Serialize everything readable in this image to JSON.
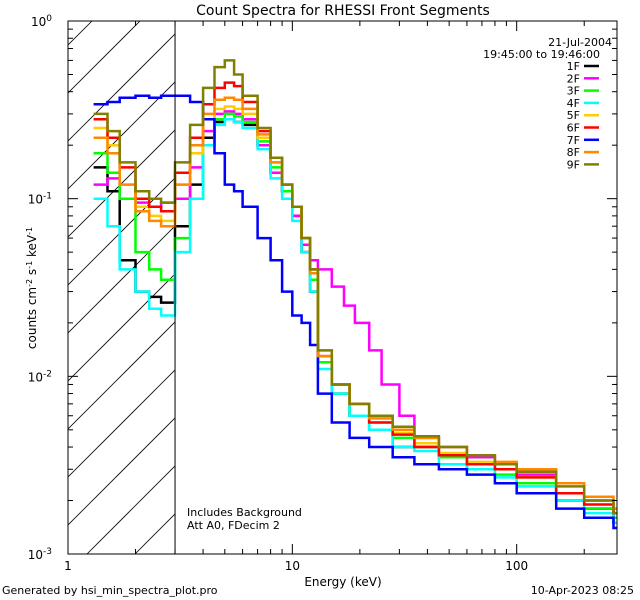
{
  "chart_data": {
    "type": "line",
    "title": "Count Spectra for RHESSI Front Segments",
    "xlabel": "Energy (keV)",
    "ylabel_parts": [
      "counts cm",
      "-2",
      " s",
      "-1",
      " keV",
      "-1"
    ],
    "xscale": "log",
    "yscale": "log",
    "xlim": [
      1,
      280
    ],
    "ylim": [
      0.001,
      1.0
    ],
    "x_ticks": [
      {
        "value": 1,
        "label": "1"
      },
      {
        "value": 10,
        "label": "10"
      },
      {
        "value": 100,
        "label": "100"
      }
    ],
    "y_ticks": [
      {
        "value": 1.0,
        "base": "10",
        "exp": "0"
      },
      {
        "value": 0.1,
        "base": "10",
        "exp": "-1"
      },
      {
        "value": 0.01,
        "base": "10",
        "exp": "-2"
      },
      {
        "value": 0.001,
        "base": "10",
        "exp": "-3"
      }
    ],
    "attenuator_boundary_keV": 3.0,
    "annotation_top_right": [
      "21-Jul-2004",
      "19:45:00 to 19:46:00"
    ],
    "annotation_bottom_left": [
      "Includes Background",
      "Att A0, FDecim 2"
    ],
    "series": [
      {
        "name": "1F",
        "color": "#000000",
        "points": [
          [
            1.3,
            0.15
          ],
          [
            1.5,
            0.11
          ],
          [
            1.7,
            0.045
          ],
          [
            2.0,
            0.03
          ],
          [
            2.3,
            0.028
          ],
          [
            2.6,
            0.026
          ],
          [
            3.0,
            0.07
          ],
          [
            3.5,
            0.12
          ],
          [
            4.0,
            0.22
          ],
          [
            4.5,
            0.27
          ],
          [
            5.0,
            0.28
          ],
          [
            5.5,
            0.27
          ],
          [
            6.0,
            0.26
          ],
          [
            7.0,
            0.2
          ],
          [
            8.0,
            0.14
          ],
          [
            9.0,
            0.11
          ],
          [
            10,
            0.08
          ],
          [
            11,
            0.05
          ],
          [
            12,
            0.03
          ],
          [
            13,
            0.012
          ],
          [
            15,
            0.008
          ],
          [
            18,
            0.006
          ],
          [
            22,
            0.005
          ],
          [
            28,
            0.004
          ],
          [
            35,
            0.004
          ],
          [
            45,
            0.0035
          ],
          [
            60,
            0.003
          ],
          [
            80,
            0.003
          ],
          [
            100,
            0.0025
          ],
          [
            150,
            0.002
          ],
          [
            200,
            0.0018
          ],
          [
            270,
            0.0015
          ]
        ]
      },
      {
        "name": "2F",
        "color": "#ff00ff",
        "points": [
          [
            1.3,
            0.12
          ],
          [
            1.5,
            0.13
          ],
          [
            1.7,
            0.1
          ],
          [
            2.0,
            0.095
          ],
          [
            2.3,
            0.09
          ],
          [
            2.6,
            0.095
          ],
          [
            3.0,
            0.1
          ],
          [
            3.5,
            0.15
          ],
          [
            4.0,
            0.24
          ],
          [
            4.5,
            0.3
          ],
          [
            5.0,
            0.31
          ],
          [
            5.5,
            0.3
          ],
          [
            6.0,
            0.28
          ],
          [
            7.0,
            0.2
          ],
          [
            8.0,
            0.14
          ],
          [
            9.0,
            0.11
          ],
          [
            10,
            0.08
          ],
          [
            11,
            0.055
          ],
          [
            12,
            0.045
          ],
          [
            13,
            0.04
          ],
          [
            15,
            0.032
          ],
          [
            17,
            0.025
          ],
          [
            19,
            0.02
          ],
          [
            22,
            0.014
          ],
          [
            25,
            0.009
          ],
          [
            30,
            0.006
          ],
          [
            35,
            0.0045
          ],
          [
            45,
            0.004
          ],
          [
            60,
            0.0035
          ],
          [
            80,
            0.003
          ],
          [
            100,
            0.0028
          ],
          [
            150,
            0.0022
          ],
          [
            200,
            0.002
          ],
          [
            270,
            0.0018
          ]
        ]
      },
      {
        "name": "3F",
        "color": "#00ff00",
        "points": [
          [
            1.3,
            0.18
          ],
          [
            1.5,
            0.14
          ],
          [
            1.7,
            0.1
          ],
          [
            2.0,
            0.05
          ],
          [
            2.3,
            0.04
          ],
          [
            2.6,
            0.035
          ],
          [
            3.0,
            0.06
          ],
          [
            3.5,
            0.1
          ],
          [
            4.0,
            0.2
          ],
          [
            4.5,
            0.28
          ],
          [
            5.0,
            0.3
          ],
          [
            5.5,
            0.29
          ],
          [
            6.0,
            0.27
          ],
          [
            7.0,
            0.21
          ],
          [
            8.0,
            0.15
          ],
          [
            9.0,
            0.11
          ],
          [
            10,
            0.09
          ],
          [
            11,
            0.06
          ],
          [
            12,
            0.035
          ],
          [
            13,
            0.012
          ],
          [
            15,
            0.008
          ],
          [
            18,
            0.006
          ],
          [
            22,
            0.005
          ],
          [
            28,
            0.0045
          ],
          [
            35,
            0.004
          ],
          [
            45,
            0.0035
          ],
          [
            60,
            0.003
          ],
          [
            80,
            0.0028
          ],
          [
            100,
            0.0025
          ],
          [
            150,
            0.002
          ],
          [
            200,
            0.0018
          ],
          [
            270,
            0.0016
          ]
        ]
      },
      {
        "name": "4F",
        "color": "#00ffff",
        "points": [
          [
            1.3,
            0.1
          ],
          [
            1.5,
            0.07
          ],
          [
            1.7,
            0.04
          ],
          [
            2.0,
            0.03
          ],
          [
            2.3,
            0.024
          ],
          [
            2.6,
            0.022
          ],
          [
            3.0,
            0.05
          ],
          [
            3.5,
            0.1
          ],
          [
            4.0,
            0.2
          ],
          [
            4.5,
            0.26
          ],
          [
            5.0,
            0.28
          ],
          [
            5.5,
            0.27
          ],
          [
            6.0,
            0.25
          ],
          [
            7.0,
            0.19
          ],
          [
            8.0,
            0.13
          ],
          [
            9.0,
            0.1
          ],
          [
            10,
            0.075
          ],
          [
            11,
            0.05
          ],
          [
            12,
            0.03
          ],
          [
            13,
            0.011
          ],
          [
            15,
            0.008
          ],
          [
            18,
            0.006
          ],
          [
            22,
            0.005
          ],
          [
            28,
            0.004
          ],
          [
            35,
            0.0038
          ],
          [
            45,
            0.0032
          ],
          [
            60,
            0.003
          ],
          [
            80,
            0.0027
          ],
          [
            100,
            0.0024
          ],
          [
            150,
            0.002
          ],
          [
            200,
            0.0017
          ],
          [
            270,
            0.0015
          ]
        ]
      },
      {
        "name": "5F",
        "color": "#ffcc00",
        "points": [
          [
            1.3,
            0.25
          ],
          [
            1.5,
            0.2
          ],
          [
            1.7,
            0.12
          ],
          [
            2.0,
            0.09
          ],
          [
            2.3,
            0.08
          ],
          [
            2.6,
            0.075
          ],
          [
            3.0,
            0.12
          ],
          [
            3.5,
            0.18
          ],
          [
            4.0,
            0.28
          ],
          [
            4.5,
            0.32
          ],
          [
            5.0,
            0.33
          ],
          [
            5.5,
            0.32
          ],
          [
            6.0,
            0.3
          ],
          [
            7.0,
            0.22
          ],
          [
            8.0,
            0.16
          ],
          [
            9.0,
            0.12
          ],
          [
            10,
            0.09
          ],
          [
            11,
            0.06
          ],
          [
            12,
            0.04
          ],
          [
            13,
            0.014
          ],
          [
            15,
            0.009
          ],
          [
            18,
            0.007
          ],
          [
            22,
            0.0055
          ],
          [
            28,
            0.0048
          ],
          [
            35,
            0.0042
          ],
          [
            45,
            0.0037
          ],
          [
            60,
            0.0033
          ],
          [
            80,
            0.003
          ],
          [
            100,
            0.0027
          ],
          [
            150,
            0.0022
          ],
          [
            200,
            0.002
          ],
          [
            270,
            0.0017
          ]
        ]
      },
      {
        "name": "6F",
        "color": "#ff0000",
        "points": [
          [
            1.3,
            0.28
          ],
          [
            1.5,
            0.22
          ],
          [
            1.7,
            0.15
          ],
          [
            2.0,
            0.1
          ],
          [
            2.3,
            0.09
          ],
          [
            2.6,
            0.085
          ],
          [
            3.0,
            0.14
          ],
          [
            3.5,
            0.22
          ],
          [
            4.0,
            0.34
          ],
          [
            4.5,
            0.42
          ],
          [
            5.0,
            0.45
          ],
          [
            5.5,
            0.43
          ],
          [
            6.0,
            0.35
          ],
          [
            7.0,
            0.24
          ],
          [
            8.0,
            0.17
          ],
          [
            9.0,
            0.12
          ],
          [
            10,
            0.09
          ],
          [
            11,
            0.06
          ],
          [
            12,
            0.04
          ],
          [
            13,
            0.013
          ],
          [
            15,
            0.009
          ],
          [
            18,
            0.007
          ],
          [
            22,
            0.0055
          ],
          [
            28,
            0.0047
          ],
          [
            35,
            0.004
          ],
          [
            45,
            0.0036
          ],
          [
            60,
            0.0032
          ],
          [
            80,
            0.003
          ],
          [
            100,
            0.0027
          ],
          [
            150,
            0.0022
          ],
          [
            200,
            0.0019
          ],
          [
            270,
            0.0017
          ]
        ]
      },
      {
        "name": "7F",
        "color": "#0000ff",
        "points": [
          [
            1.3,
            0.34
          ],
          [
            1.5,
            0.35
          ],
          [
            1.7,
            0.37
          ],
          [
            2.0,
            0.38
          ],
          [
            2.3,
            0.37
          ],
          [
            2.6,
            0.38
          ],
          [
            3.0,
            0.38
          ],
          [
            3.5,
            0.35
          ],
          [
            4.0,
            0.28
          ],
          [
            4.5,
            0.18
          ],
          [
            5.0,
            0.12
          ],
          [
            5.5,
            0.11
          ],
          [
            6.0,
            0.09
          ],
          [
            7.0,
            0.06
          ],
          [
            8.0,
            0.045
          ],
          [
            9.0,
            0.03
          ],
          [
            10,
            0.022
          ],
          [
            11,
            0.02
          ],
          [
            12,
            0.015
          ],
          [
            13,
            0.008
          ],
          [
            15,
            0.0055
          ],
          [
            18,
            0.0045
          ],
          [
            22,
            0.004
          ],
          [
            28,
            0.0035
          ],
          [
            35,
            0.0032
          ],
          [
            45,
            0.003
          ],
          [
            60,
            0.0028
          ],
          [
            80,
            0.0025
          ],
          [
            100,
            0.0022
          ],
          [
            150,
            0.0018
          ],
          [
            200,
            0.0016
          ],
          [
            270,
            0.0014
          ]
        ]
      },
      {
        "name": "8F",
        "color": "#ff8800",
        "points": [
          [
            1.3,
            0.22
          ],
          [
            1.5,
            0.18
          ],
          [
            1.7,
            0.12
          ],
          [
            2.0,
            0.085
          ],
          [
            2.3,
            0.075
          ],
          [
            2.6,
            0.07
          ],
          [
            3.0,
            0.12
          ],
          [
            3.5,
            0.2
          ],
          [
            4.0,
            0.3
          ],
          [
            4.5,
            0.36
          ],
          [
            5.0,
            0.37
          ],
          [
            5.5,
            0.36
          ],
          [
            6.0,
            0.32
          ],
          [
            7.0,
            0.23
          ],
          [
            8.0,
            0.16
          ],
          [
            9.0,
            0.12
          ],
          [
            10,
            0.09
          ],
          [
            11,
            0.06
          ],
          [
            12,
            0.038
          ],
          [
            13,
            0.013
          ],
          [
            15,
            0.009
          ],
          [
            18,
            0.007
          ],
          [
            22,
            0.0058
          ],
          [
            28,
            0.005
          ],
          [
            35,
            0.0045
          ],
          [
            45,
            0.004
          ],
          [
            60,
            0.0036
          ],
          [
            80,
            0.0033
          ],
          [
            100,
            0.003
          ],
          [
            150,
            0.0025
          ],
          [
            200,
            0.0021
          ],
          [
            270,
            0.0018
          ]
        ]
      },
      {
        "name": "9F",
        "color": "#808000",
        "points": [
          [
            1.3,
            0.3
          ],
          [
            1.5,
            0.24
          ],
          [
            1.7,
            0.16
          ],
          [
            2.0,
            0.11
          ],
          [
            2.3,
            0.1
          ],
          [
            2.6,
            0.095
          ],
          [
            3.0,
            0.16
          ],
          [
            3.5,
            0.26
          ],
          [
            4.0,
            0.42
          ],
          [
            4.5,
            0.55
          ],
          [
            5.0,
            0.6
          ],
          [
            5.5,
            0.5
          ],
          [
            6.0,
            0.38
          ],
          [
            7.0,
            0.25
          ],
          [
            8.0,
            0.17
          ],
          [
            9.0,
            0.12
          ],
          [
            10,
            0.09
          ],
          [
            11,
            0.06
          ],
          [
            12,
            0.04
          ],
          [
            13,
            0.014
          ],
          [
            15,
            0.009
          ],
          [
            18,
            0.007
          ],
          [
            22,
            0.006
          ],
          [
            28,
            0.0052
          ],
          [
            35,
            0.0046
          ],
          [
            45,
            0.004
          ],
          [
            60,
            0.0036
          ],
          [
            80,
            0.0032
          ],
          [
            100,
            0.0029
          ],
          [
            150,
            0.0024
          ],
          [
            200,
            0.002
          ],
          [
            270,
            0.0017
          ]
        ]
      }
    ]
  },
  "footer": {
    "left": "Generated by hsi_min_spectra_plot.pro",
    "right": "10-Apr-2023 08:25"
  }
}
